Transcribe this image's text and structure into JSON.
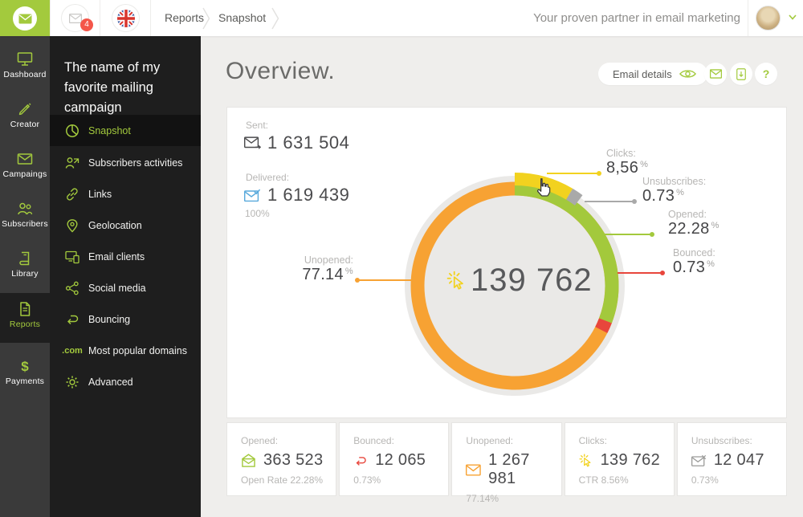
{
  "topbar": {
    "notifications_badge": "4",
    "breadcrumb": [
      "Reports",
      "Snapshot"
    ],
    "tagline": "Your proven partner in email marketing"
  },
  "sidebar": {
    "items": [
      {
        "label": "Dashboard",
        "icon": "monitor-icon",
        "active": false
      },
      {
        "label": "Creator",
        "icon": "pencil-icon",
        "active": false
      },
      {
        "label": "Campaings",
        "icon": "envelope-icon",
        "active": false
      },
      {
        "label": "Subscribers",
        "icon": "users-icon",
        "active": false
      },
      {
        "label": "Library",
        "icon": "book-icon",
        "active": false
      },
      {
        "label": "Reports",
        "icon": "report-icon",
        "active": true
      },
      {
        "label": "Payments",
        "icon": "dollar-icon",
        "active": false
      }
    ],
    "dollar_glyph": "$"
  },
  "campaign_menu": {
    "title": "The name of my favorite mailing campaign",
    "items": [
      {
        "label": "Snapshot",
        "icon": "pie-icon",
        "active": true
      },
      {
        "label": "Subscribers activities",
        "icon": "user-activity-icon",
        "active": false
      },
      {
        "label": "Links",
        "icon": "link-icon",
        "active": false
      },
      {
        "label": "Geolocation",
        "icon": "map-pin-icon",
        "active": false
      },
      {
        "label": "Email clients",
        "icon": "devices-icon",
        "active": false
      },
      {
        "label": "Social media",
        "icon": "share-icon",
        "active": false
      },
      {
        "label": "Bouncing",
        "icon": "bounce-arrow-icon",
        "active": false
      },
      {
        "label": "Most popular domains",
        "icon": "dot-com-icon",
        "icon_text": ".com",
        "active": false
      },
      {
        "label": "Advanced",
        "icon": "gear-icon",
        "active": false
      }
    ]
  },
  "main": {
    "title": "Overview.",
    "email_details_label": "Email details",
    "help_label": "?",
    "bounce_glyph": "↩",
    "sent": {
      "label": "Sent:",
      "value": "1 631 504"
    },
    "delivered": {
      "label": "Delivered:",
      "value": "1 619 439",
      "sub": "100%"
    }
  },
  "chart_data": {
    "type": "pie",
    "subtype": "donut",
    "center_value": "139 762",
    "center_icon": "click-burst-icon",
    "legend_position": "callouts",
    "segments": [
      {
        "name": "Clicks",
        "label": "Clicks:",
        "value_display": "8,56",
        "unit": "%",
        "pct": 8.56,
        "color": "#f2d21f"
      },
      {
        "name": "Unsubscribes",
        "label": "Unsubscribes:",
        "value_display": "0.73",
        "unit": "%",
        "pct": 0.73,
        "color": "#a9a9a9"
      },
      {
        "name": "Opened",
        "label": "Opened:",
        "value_display": "22.28",
        "unit": "%",
        "pct": 22.28,
        "color": "#a3c93c"
      },
      {
        "name": "Bounced",
        "label": "Bounced:",
        "value_display": "0.73",
        "unit": "%",
        "pct": 0.73,
        "color": "#e8463c"
      },
      {
        "name": "Unopened",
        "label": "Unopened:",
        "value_display": "77.14",
        "unit": "%",
        "pct": 77.14,
        "color": "#f7a233"
      }
    ]
  },
  "stats": [
    {
      "label": "Opened:",
      "value": "363 523",
      "sub": "Open Rate 22.28%",
      "icon": "open-envelope-icon",
      "color": "#a3c93c"
    },
    {
      "label": "Bounced:",
      "value": "12 065",
      "sub": "0.73%",
      "icon": "bounce-arrow-icon",
      "color": "#e8463c"
    },
    {
      "label": "Unopened:",
      "value": "1 267 981",
      "sub": "77.14%",
      "icon": "envelope-icon",
      "color": "#f7a233"
    },
    {
      "label": "Clicks:",
      "value": "139 762",
      "sub": "CTR 8.56%",
      "icon": "click-burst-icon",
      "color": "#f2d21f"
    },
    {
      "label": "Unsubscribes:",
      "value": "12 047",
      "sub": "0.73%",
      "icon": "envelope-x-icon",
      "color": "#9b9b99"
    }
  ],
  "colors": {
    "brand_green": "#a3ca3d",
    "delivered_blue": "#58a9dc",
    "badge_red": "#f4564a",
    "sidebar_dark": "#3a3a3a",
    "menu_dark": "#1e1e1e"
  }
}
